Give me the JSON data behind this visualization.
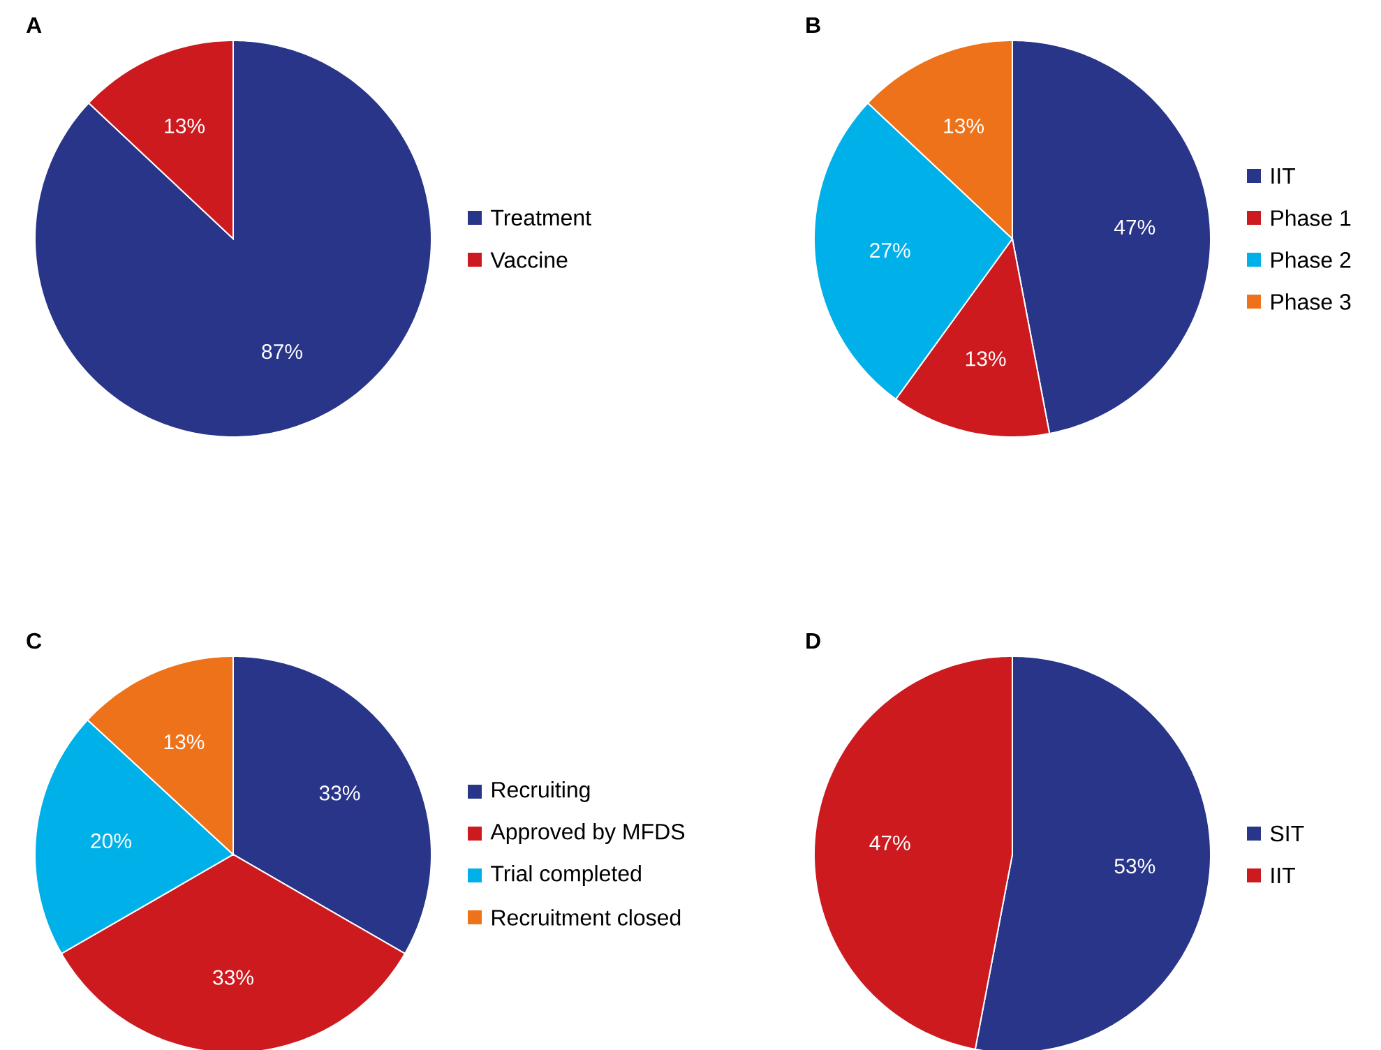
{
  "chart_data": [
    {
      "type": "pie",
      "title": "A",
      "categories": [
        "Treatment",
        "Vaccine"
      ],
      "values": [
        87,
        13
      ],
      "colors": [
        "#283588",
        "#cc1a1f"
      ],
      "value_labels": [
        "87%",
        "13%"
      ],
      "legend": "right"
    },
    {
      "type": "pie",
      "title": "B",
      "categories": [
        "IIT",
        "Phase 1",
        "Phase 2",
        "Phase 3"
      ],
      "values": [
        47,
        13,
        27,
        13
      ],
      "colors": [
        "#283588",
        "#cc1a1f",
        "#00b0e8",
        "#ee7219"
      ],
      "value_labels": [
        "47%",
        "13%",
        "27%",
        "13%"
      ],
      "legend": "right"
    },
    {
      "type": "pie",
      "title": "C",
      "categories": [
        "Recruiting",
        "Approved by MFDS",
        "Trial completed",
        "Recruitment closed"
      ],
      "values": [
        33,
        33,
        20,
        13
      ],
      "colors": [
        "#283588",
        "#cc1a1f",
        "#00b0e8",
        "#ee7219"
      ],
      "value_labels": [
        "33%",
        "33%",
        "20%",
        "13%"
      ],
      "legend": "right"
    },
    {
      "type": "pie",
      "title": "D",
      "categories": [
        "SIT",
        "IIT"
      ],
      "values": [
        53,
        47
      ],
      "colors": [
        "#283588",
        "#cc1a1f"
      ],
      "value_labels": [
        "53%",
        "47%"
      ],
      "legend": "right"
    }
  ]
}
